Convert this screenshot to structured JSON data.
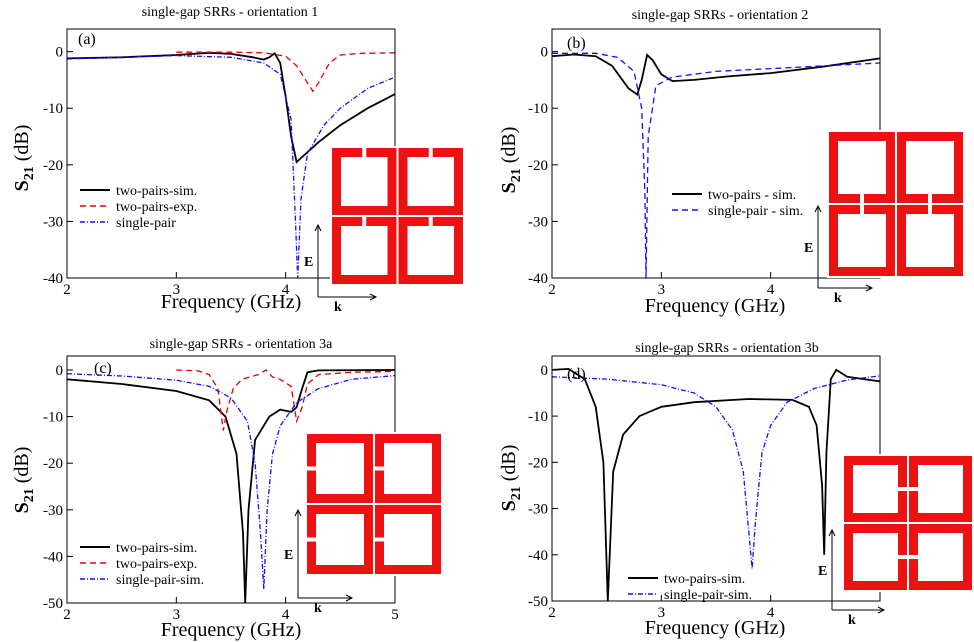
{
  "chart_data": [
    {
      "type": "line",
      "panel_label": "(a)",
      "title": "single-gap SRRs - orientation 1",
      "xlabel": "Frequency (GHz)",
      "ylabel": "S21 (dB)",
      "xlim": [
        2,
        5
      ],
      "ylim": [
        -40,
        4
      ],
      "xticks": [
        2,
        3,
        4
      ],
      "yticks": [
        0,
        -10,
        -20,
        -30,
        -40
      ],
      "legend_location": "lower-left",
      "inset": {
        "gaps": "orientation-1",
        "e_label": "E",
        "k_label": "k"
      },
      "series": [
        {
          "name": "two-pairs-sim.",
          "color": "#000000",
          "dash": "solid",
          "points": [
            [
              2.0,
              -1.2
            ],
            [
              2.5,
              -1.0
            ],
            [
              3.0,
              -0.6
            ],
            [
              3.3,
              -0.2
            ],
            [
              3.5,
              -0.4
            ],
            [
              3.7,
              -1.0
            ],
            [
              3.8,
              -1.4
            ],
            [
              3.85,
              -1.0
            ],
            [
              3.9,
              -0.3
            ],
            [
              3.95,
              -2.0
            ],
            [
              4.0,
              -8.0
            ],
            [
              4.05,
              -15.0
            ],
            [
              4.1,
              -19.5
            ],
            [
              4.3,
              -16.0
            ],
            [
              4.5,
              -13.0
            ],
            [
              4.75,
              -10.0
            ],
            [
              5.0,
              -7.5
            ]
          ]
        },
        {
          "name": "two-pairs-exp.",
          "color": "#e00000",
          "dash": "dashed",
          "points": [
            [
              3.0,
              -0.1
            ],
            [
              3.5,
              -0.1
            ],
            [
              3.8,
              -0.2
            ],
            [
              4.0,
              -0.8
            ],
            [
              4.1,
              -2.5
            ],
            [
              4.2,
              -5.5
            ],
            [
              4.25,
              -7.0
            ],
            [
              4.3,
              -5.5
            ],
            [
              4.4,
              -2.0
            ],
            [
              4.5,
              -0.6
            ],
            [
              4.7,
              -0.3
            ],
            [
              5.0,
              -0.2
            ]
          ]
        },
        {
          "name": "single-pair",
          "color": "#1010ff",
          "dash": "dashdot",
          "points": [
            [
              2.0,
              -1.3
            ],
            [
              2.5,
              -1.0
            ],
            [
              3.0,
              -0.7
            ],
            [
              3.5,
              -1.0
            ],
            [
              3.8,
              -2.0
            ],
            [
              3.95,
              -4.0
            ],
            [
              4.05,
              -12.0
            ],
            [
              4.09,
              -30.0
            ],
            [
              4.11,
              -40.0
            ],
            [
              4.14,
              -26.0
            ],
            [
              4.2,
              -18.0
            ],
            [
              4.35,
              -13.0
            ],
            [
              4.5,
              -10.0
            ],
            [
              4.75,
              -6.5
            ],
            [
              5.0,
              -4.5
            ]
          ]
        }
      ]
    },
    {
      "type": "line",
      "panel_label": "(b)",
      "title": "single-gap SRRs - orientation 2",
      "xlabel": "Frequency (GHz)",
      "ylabel": "S21 (dB)",
      "xlim": [
        2,
        5
      ],
      "ylim": [
        -40,
        4
      ],
      "xticks": [
        2,
        3,
        4
      ],
      "yticks": [
        0,
        -10,
        -20,
        -30,
        -40
      ],
      "legend_location": "center-right",
      "inset": {
        "gaps": "orientation-2",
        "e_label": "E",
        "k_label": "k"
      },
      "series": [
        {
          "name": "two-pairs - sim.",
          "color": "#000000",
          "dash": "solid",
          "points": [
            [
              2.0,
              -0.8
            ],
            [
              2.2,
              -0.5
            ],
            [
              2.4,
              -0.8
            ],
            [
              2.55,
              -2.5
            ],
            [
              2.7,
              -6.5
            ],
            [
              2.78,
              -7.6
            ],
            [
              2.82,
              -5.0
            ],
            [
              2.87,
              -0.6
            ],
            [
              2.92,
              -1.5
            ],
            [
              3.0,
              -4.0
            ],
            [
              3.1,
              -5.2
            ],
            [
              3.3,
              -5.0
            ],
            [
              3.6,
              -4.4
            ],
            [
              4.0,
              -3.8
            ],
            [
              4.5,
              -2.6
            ],
            [
              5.0,
              -1.2
            ]
          ]
        },
        {
          "name": "single-pair - sim.",
          "color": "#1010ff",
          "dash": "dashed",
          "points": [
            [
              2.0,
              -0.3
            ],
            [
              2.4,
              -0.3
            ],
            [
              2.6,
              -1.0
            ],
            [
              2.75,
              -3.5
            ],
            [
              2.82,
              -10.0
            ],
            [
              2.85,
              -25.0
            ],
            [
              2.86,
              -40.0
            ],
            [
              2.88,
              -15.0
            ],
            [
              2.95,
              -6.0
            ],
            [
              3.1,
              -4.5
            ],
            [
              3.5,
              -3.5
            ],
            [
              4.0,
              -3.0
            ],
            [
              4.5,
              -2.5
            ],
            [
              5.0,
              -2.0
            ]
          ]
        }
      ]
    },
    {
      "type": "line",
      "panel_label": "(c)",
      "title": "single-gap SRRs - orientation 3a",
      "xlabel": "Frequency (GHz)",
      "ylabel": "S21 (dB)",
      "xlim": [
        2,
        5
      ],
      "ylim": [
        -50,
        3
      ],
      "xticks": [
        2,
        3,
        4,
        5
      ],
      "yticks": [
        0,
        -10,
        -20,
        -30,
        -40,
        -50
      ],
      "legend_location": "lower-left",
      "inset": {
        "gaps": "orientation-3a",
        "e_label": "E",
        "k_label": "k"
      },
      "series": [
        {
          "name": "two-pairs-sim.",
          "color": "#000000",
          "dash": "solid",
          "points": [
            [
              2.0,
              -2.0
            ],
            [
              2.5,
              -3.0
            ],
            [
              3.0,
              -4.5
            ],
            [
              3.3,
              -6.5
            ],
            [
              3.45,
              -10.0
            ],
            [
              3.55,
              -18.0
            ],
            [
              3.61,
              -35.0
            ],
            [
              3.63,
              -50.0
            ],
            [
              3.66,
              -30.0
            ],
            [
              3.72,
              -15.0
            ],
            [
              3.85,
              -10.0
            ],
            [
              3.95,
              -8.5
            ],
            [
              4.05,
              -9.0
            ],
            [
              4.1,
              -8.0
            ],
            [
              4.15,
              -4.0
            ],
            [
              4.2,
              -0.5
            ],
            [
              4.3,
              -0.1
            ],
            [
              5.0,
              0.0
            ]
          ]
        },
        {
          "name": "two-pairs-exp.",
          "color": "#e00000",
          "dash": "dashed",
          "points": [
            [
              3.0,
              0.0
            ],
            [
              3.2,
              -0.2
            ],
            [
              3.3,
              -1.0
            ],
            [
              3.38,
              -4.0
            ],
            [
              3.43,
              -13.0
            ],
            [
              3.46,
              -9.0
            ],
            [
              3.52,
              -4.0
            ],
            [
              3.6,
              -2.0
            ],
            [
              3.75,
              -1.0
            ],
            [
              3.82,
              0.0
            ],
            [
              3.88,
              -1.5
            ],
            [
              3.95,
              -2.0
            ],
            [
              4.05,
              -3.5
            ],
            [
              4.1,
              -11.0
            ],
            [
              4.15,
              -8.0
            ],
            [
              4.2,
              -3.0
            ],
            [
              4.3,
              -1.0
            ],
            [
              4.6,
              -0.5
            ],
            [
              5.0,
              -0.3
            ]
          ]
        },
        {
          "name": "single-pair-sim.",
          "color": "#1010ff",
          "dash": "dashdot",
          "points": [
            [
              2.0,
              -0.8
            ],
            [
              2.5,
              -1.3
            ],
            [
              3.0,
              -2.2
            ],
            [
              3.3,
              -3.5
            ],
            [
              3.5,
              -6.0
            ],
            [
              3.65,
              -11.0
            ],
            [
              3.72,
              -20.0
            ],
            [
              3.77,
              -35.0
            ],
            [
              3.8,
              -47.0
            ],
            [
              3.83,
              -30.0
            ],
            [
              3.88,
              -18.0
            ],
            [
              3.95,
              -12.0
            ],
            [
              4.1,
              -7.0
            ],
            [
              4.3,
              -4.0
            ],
            [
              4.6,
              -2.0
            ],
            [
              5.0,
              -1.2
            ]
          ]
        }
      ]
    },
    {
      "type": "line",
      "panel_label": "(d)",
      "title": "single-gap SRRs - orientation 3b",
      "xlabel": "Frequency (GHz)",
      "ylabel": "S21 (dB)",
      "xlim": [
        2,
        5
      ],
      "ylim": [
        -50,
        3
      ],
      "xticks": [
        2,
        3,
        4
      ],
      "yticks": [
        0,
        -10,
        -20,
        -30,
        -40,
        -50
      ],
      "legend_location": "lower-left",
      "inset": {
        "gaps": "orientation-3b",
        "e_label": "E",
        "k_label": "k"
      },
      "series": [
        {
          "name": "two-pairs-sim.",
          "color": "#000000",
          "dash": "solid",
          "points": [
            [
              2.0,
              0.0
            ],
            [
              2.15,
              0.2
            ],
            [
              2.3,
              -2.0
            ],
            [
              2.4,
              -8.0
            ],
            [
              2.47,
              -20.0
            ],
            [
              2.51,
              -50.0
            ],
            [
              2.56,
              -22.0
            ],
            [
              2.65,
              -14.0
            ],
            [
              2.8,
              -10.0
            ],
            [
              3.0,
              -8.0
            ],
            [
              3.3,
              -7.0
            ],
            [
              3.8,
              -6.3
            ],
            [
              4.2,
              -6.5
            ],
            [
              4.35,
              -8.0
            ],
            [
              4.42,
              -12.0
            ],
            [
              4.47,
              -25.0
            ],
            [
              4.49,
              -40.0
            ],
            [
              4.51,
              -18.0
            ],
            [
              4.55,
              -2.0
            ],
            [
              4.6,
              0.0
            ],
            [
              4.7,
              -1.5
            ],
            [
              5.0,
              -2.5
            ]
          ]
        },
        {
          "name": "single-pair-sim.",
          "color": "#1010ff",
          "dash": "dashdot",
          "points": [
            [
              2.0,
              -1.5
            ],
            [
              2.5,
              -2.0
            ],
            [
              3.0,
              -3.2
            ],
            [
              3.3,
              -5.0
            ],
            [
              3.5,
              -8.0
            ],
            [
              3.65,
              -13.0
            ],
            [
              3.75,
              -22.0
            ],
            [
              3.8,
              -35.0
            ],
            [
              3.83,
              -43.0
            ],
            [
              3.86,
              -33.0
            ],
            [
              3.92,
              -18.0
            ],
            [
              4.0,
              -12.0
            ],
            [
              4.15,
              -7.0
            ],
            [
              4.4,
              -4.0
            ],
            [
              4.7,
              -2.2
            ],
            [
              5.0,
              -1.3
            ]
          ]
        }
      ]
    }
  ]
}
